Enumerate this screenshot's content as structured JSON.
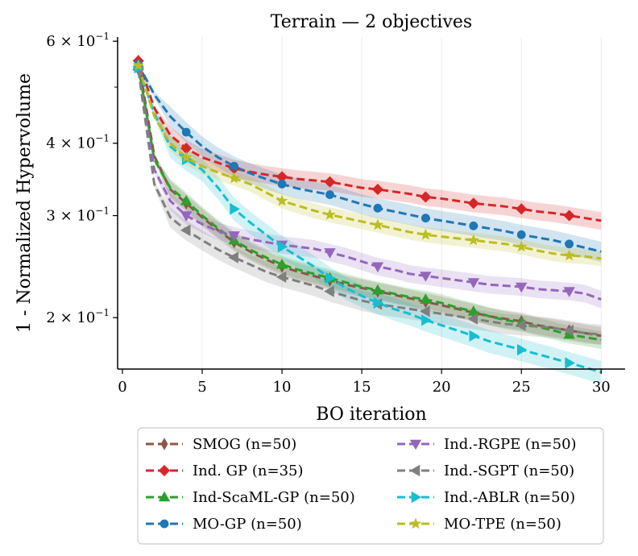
{
  "chart_data": {
    "type": "line",
    "title": "Terrain — 2 objectives",
    "xlabel": "BO iteration",
    "ylabel": "1 - Normalized Hypervolume",
    "xlim": [
      -0.3,
      31.5
    ],
    "ylim": [
      0.163,
      0.61
    ],
    "yscale": "log",
    "x_ticks": [
      0,
      5,
      10,
      15,
      20,
      25,
      30
    ],
    "y_ticks": [
      {
        "value": 0.2,
        "mantissa": "2",
        "base": "10",
        "exponent": "−1"
      },
      {
        "value": 0.3,
        "mantissa": "3",
        "base": "10",
        "exponent": "−1"
      },
      {
        "value": 0.4,
        "mantissa": "4",
        "base": "10",
        "exponent": "−1"
      },
      {
        "value": 0.6,
        "mantissa": "6",
        "base": "10",
        "exponent": "−1"
      }
    ],
    "grid": "vertical",
    "legend_position": "below",
    "x": [
      1,
      2,
      3,
      4,
      5,
      6,
      7,
      8,
      9,
      10,
      11,
      12,
      13,
      14,
      15,
      16,
      17,
      18,
      19,
      20,
      21,
      22,
      23,
      24,
      25,
      26,
      27,
      28,
      29,
      30
    ],
    "series": [
      {
        "name": "SMOG (n=50)",
        "color": "#8c564b",
        "marker": "thin_diamond",
        "band": 0.035,
        "values": [
          0.555,
          0.38,
          0.333,
          0.315,
          0.298,
          0.283,
          0.27,
          0.26,
          0.252,
          0.245,
          0.24,
          0.236,
          0.232,
          0.228,
          0.225,
          0.222,
          0.219,
          0.216,
          0.213,
          0.21,
          0.207,
          0.204,
          0.201,
          0.199,
          0.197,
          0.194,
          0.192,
          0.19,
          0.188,
          0.186
        ]
      },
      {
        "name": "Ind. GP (n=35)",
        "color": "#d62728",
        "marker": "diamond",
        "band": 0.035,
        "values": [
          0.555,
          0.46,
          0.413,
          0.392,
          0.378,
          0.37,
          0.362,
          0.357,
          0.353,
          0.35,
          0.347,
          0.345,
          0.343,
          0.339,
          0.335,
          0.333,
          0.33,
          0.327,
          0.323,
          0.321,
          0.318,
          0.315,
          0.313,
          0.311,
          0.308,
          0.305,
          0.303,
          0.3,
          0.297,
          0.294
        ]
      },
      {
        "name": "Ind-ScaML-GP (n=50)",
        "color": "#2ca02c",
        "marker": "triangle_up",
        "band": 0.035,
        "values": [
          0.545,
          0.375,
          0.335,
          0.318,
          0.3,
          0.285,
          0.272,
          0.262,
          0.254,
          0.247,
          0.242,
          0.238,
          0.234,
          0.23,
          0.226,
          0.223,
          0.22,
          0.217,
          0.215,
          0.212,
          0.208,
          0.205,
          0.201,
          0.198,
          0.196,
          0.193,
          0.19,
          0.187,
          0.185,
          0.183
        ]
      },
      {
        "name": "MO-GP (n=50)",
        "color": "#1f77b4",
        "marker": "circle",
        "band": 0.04,
        "values": [
          0.548,
          0.485,
          0.445,
          0.418,
          0.395,
          0.378,
          0.365,
          0.355,
          0.347,
          0.34,
          0.334,
          0.33,
          0.326,
          0.32,
          0.314,
          0.309,
          0.305,
          0.301,
          0.297,
          0.294,
          0.291,
          0.288,
          0.285,
          0.282,
          0.278,
          0.275,
          0.272,
          0.268,
          0.264,
          0.26
        ]
      },
      {
        "name": "Ind.-RGPE (n=50)",
        "color": "#9467bd",
        "marker": "triangle_down",
        "band": 0.035,
        "values": [
          0.535,
          0.36,
          0.318,
          0.3,
          0.29,
          0.282,
          0.277,
          0.273,
          0.27,
          0.267,
          0.265,
          0.263,
          0.259,
          0.255,
          0.25,
          0.245,
          0.242,
          0.238,
          0.236,
          0.234,
          0.232,
          0.23,
          0.228,
          0.227,
          0.226,
          0.224,
          0.223,
          0.222,
          0.22,
          0.215
        ]
      },
      {
        "name": "Ind.-SGPT (n=50)",
        "color": "#7f7f7f",
        "marker": "triangle_left",
        "band": 0.04,
        "values": [
          0.535,
          0.34,
          0.298,
          0.283,
          0.272,
          0.262,
          0.254,
          0.247,
          0.24,
          0.235,
          0.231,
          0.227,
          0.222,
          0.218,
          0.214,
          0.211,
          0.209,
          0.207,
          0.205,
          0.203,
          0.201,
          0.199,
          0.197,
          0.195,
          0.194,
          0.193,
          0.192,
          0.19,
          0.188,
          0.187
        ]
      },
      {
        "name": "Ind.-ABLR (n=50)",
        "color": "#17becf",
        "marker": "triangle_right",
        "band": 0.045,
        "values": [
          0.54,
          0.45,
          0.395,
          0.375,
          0.36,
          0.335,
          0.308,
          0.292,
          0.278,
          0.265,
          0.255,
          0.245,
          0.234,
          0.225,
          0.218,
          0.212,
          0.207,
          0.203,
          0.198,
          0.194,
          0.19,
          0.186,
          0.182,
          0.179,
          0.176,
          0.173,
          0.17,
          0.167,
          0.164,
          0.161
        ]
      },
      {
        "name": "MO-TPE (n=50)",
        "color": "#bcbd22",
        "marker": "star",
        "band": 0.03,
        "values": [
          0.545,
          0.445,
          0.4,
          0.378,
          0.365,
          0.356,
          0.348,
          0.34,
          0.329,
          0.318,
          0.312,
          0.306,
          0.301,
          0.297,
          0.293,
          0.289,
          0.285,
          0.281,
          0.278,
          0.276,
          0.274,
          0.272,
          0.27,
          0.268,
          0.265,
          0.261,
          0.258,
          0.256,
          0.255,
          0.253
        ]
      }
    ],
    "marker_x": [
      1,
      4,
      7,
      10,
      13,
      16,
      19,
      22,
      25,
      28
    ]
  }
}
